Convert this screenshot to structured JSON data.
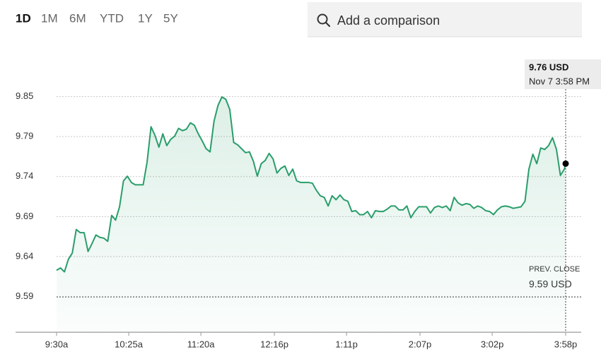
{
  "range_buttons": [
    "1D",
    "1M",
    "6M",
    "YTD",
    "1Y",
    "5Y"
  ],
  "selected_range": 0,
  "search_placeholder": "Add a comparison",
  "chart_data": {
    "type": "line",
    "color": "#2a9d6b",
    "grid": true,
    "xlim": [
      538.75,
      969.85
    ],
    "ylim": [
      9.545,
      9.892
    ],
    "xticks": [
      {
        "value": 570,
        "label": "9:30a"
      },
      {
        "value": 625,
        "label": "10:25a"
      },
      {
        "value": 680,
        "label": "11:20a"
      },
      {
        "value": 736,
        "label": "12:16p"
      },
      {
        "value": 791,
        "label": "1:11p"
      },
      {
        "value": 847,
        "label": "2:07p"
      },
      {
        "value": 902,
        "label": "3:02p"
      },
      {
        "value": 958,
        "label": "3:58p"
      }
    ],
    "yticks": [
      {
        "value": 9.8455,
        "label": "9.85"
      },
      {
        "value": 9.7945,
        "label": "9.79"
      },
      {
        "value": 9.7435,
        "label": "9.74"
      },
      {
        "value": 9.6925,
        "label": "9.69"
      },
      {
        "value": 9.6415,
        "label": "9.64"
      },
      {
        "value": 9.5905,
        "label": "9.59"
      }
    ],
    "x": [
      570,
      573,
      576,
      579,
      582,
      585,
      588,
      591,
      594,
      597,
      600,
      603,
      606,
      609,
      612,
      615,
      618,
      621,
      624,
      627,
      630,
      633,
      636,
      639,
      642,
      645,
      648,
      651,
      654,
      657,
      660,
      663,
      666,
      669,
      672,
      675,
      678,
      681,
      684,
      687,
      690,
      693,
      696,
      699,
      702,
      705,
      708,
      711,
      714,
      717,
      720,
      723,
      726,
      729,
      732,
      735,
      738,
      741,
      744,
      747,
      750,
      753,
      756,
      759,
      762,
      765,
      768,
      771,
      774,
      777,
      780,
      783,
      786,
      789,
      792,
      795,
      798,
      801,
      804,
      807,
      810,
      813,
      816,
      819,
      822,
      825,
      828,
      831,
      834,
      837,
      840,
      843,
      846,
      849,
      852,
      855,
      858,
      861,
      864,
      867,
      870,
      873,
      876,
      879,
      882,
      885,
      888,
      891,
      894,
      897,
      900,
      903,
      906,
      909,
      912,
      915,
      918,
      921,
      924,
      927,
      930,
      933,
      936,
      939,
      942,
      945,
      948,
      951,
      954,
      957,
      958
    ],
    "values": [
      9.624,
      9.627,
      9.622,
      9.638,
      9.646,
      9.676,
      9.672,
      9.672,
      9.648,
      9.658,
      9.669,
      9.666,
      9.665,
      9.661,
      9.694,
      9.688,
      9.705,
      9.738,
      9.744,
      9.736,
      9.733,
      9.733,
      9.733,
      9.762,
      9.807,
      9.796,
      9.781,
      9.798,
      9.783,
      9.791,
      9.795,
      9.805,
      9.802,
      9.804,
      9.812,
      9.809,
      9.798,
      9.789,
      9.779,
      9.775,
      9.814,
      9.834,
      9.845,
      9.842,
      9.829,
      9.787,
      9.784,
      9.779,
      9.774,
      9.775,
      9.763,
      9.744,
      9.76,
      9.764,
      9.773,
      9.766,
      9.748,
      9.754,
      9.757,
      9.745,
      9.753,
      9.738,
      9.736,
      9.736,
      9.736,
      9.735,
      9.726,
      9.719,
      9.717,
      9.706,
      9.719,
      9.714,
      9.72,
      9.714,
      9.712,
      9.699,
      9.7,
      9.695,
      9.695,
      9.699,
      9.691,
      9.7,
      9.699,
      9.699,
      9.702,
      9.706,
      9.706,
      9.701,
      9.701,
      9.706,
      9.691,
      9.699,
      9.705,
      9.705,
      9.705,
      9.697,
      9.704,
      9.706,
      9.704,
      9.706,
      9.7,
      9.717,
      9.71,
      9.707,
      9.709,
      9.708,
      9.703,
      9.706,
      9.704,
      9.7,
      9.699,
      9.695,
      9.701,
      9.705,
      9.706,
      9.705,
      9.703,
      9.704,
      9.705,
      9.712,
      9.753,
      9.772,
      9.76,
      9.78,
      9.778,
      9.783,
      9.793,
      9.778,
      9.745,
      9.753,
      9.76
    ],
    "prev_close": {
      "label": "PREV. CLOSE",
      "value": 9.59,
      "value_label": "9.59 USD"
    },
    "tooltip": {
      "x": 958,
      "value": 9.76,
      "value_label": "9.76 USD",
      "date": "Nov 7 3:58 PM"
    }
  }
}
